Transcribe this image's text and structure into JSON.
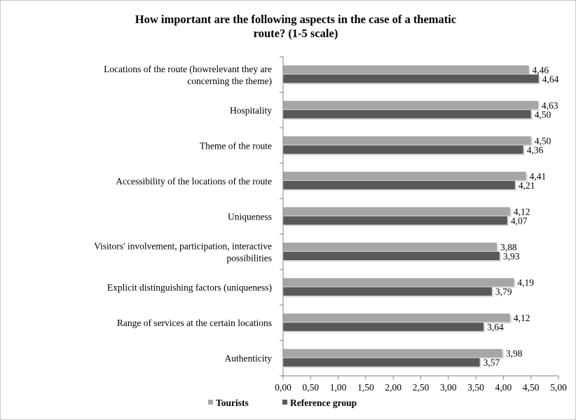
{
  "chart_data": {
    "type": "bar",
    "orientation": "horizontal",
    "title_lines": [
      "How important are the following aspects in the case of a thematic",
      "route?  (1-5 scale)"
    ],
    "categories": [
      [
        "Locations of the route (howrelevant they are",
        "concerning the theme)"
      ],
      [
        "Hospitality"
      ],
      [
        "Theme of the route"
      ],
      [
        "Accessibility of the locations of the route"
      ],
      [
        "Uniqueness"
      ],
      [
        "Visitors' involvement, participation, interactive",
        "possibilities"
      ],
      [
        "Explicit distinguishing factors (uniqueness)"
      ],
      [
        "Range of services at the certain locations"
      ],
      [
        "Authenticity"
      ]
    ],
    "series": [
      {
        "name": "Tourists",
        "color": "#a6a6a6",
        "values": [
          4.46,
          4.63,
          4.5,
          4.41,
          4.12,
          3.88,
          4.19,
          4.12,
          3.98
        ],
        "labels": [
          "4,46",
          "4,63",
          "4,50",
          "4,41",
          "4,12",
          "3,88",
          "4,19",
          "4,12",
          "3,98"
        ]
      },
      {
        "name": "Reference group",
        "color": "#595959",
        "values": [
          4.64,
          4.5,
          4.36,
          4.21,
          4.07,
          3.93,
          3.79,
          3.64,
          3.57
        ],
        "labels": [
          "4,64",
          "4,50",
          "4,36",
          "4,21",
          "4,07",
          "3,93",
          "3,79",
          "3,64",
          "3,57"
        ]
      }
    ],
    "xlim": [
      0,
      5
    ],
    "x_ticks": [
      0,
      0.5,
      1,
      1.5,
      2,
      2.5,
      3,
      3.5,
      4,
      4.5,
      5
    ],
    "x_tick_labels": [
      "0,00",
      "0,50",
      "1,00",
      "1,50",
      "2,00",
      "2,50",
      "3,00",
      "3,50",
      "4,00",
      "4,50",
      "5,00"
    ],
    "grid": false,
    "legend_position": "bottom"
  }
}
